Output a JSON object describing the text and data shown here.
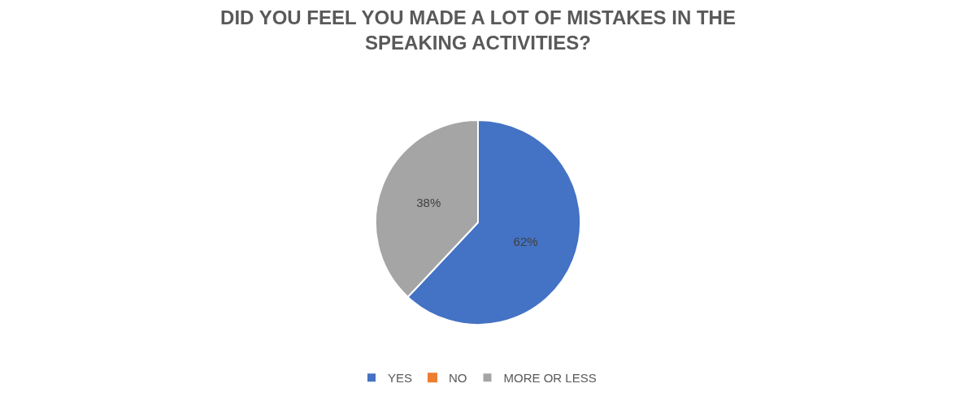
{
  "chart_data": {
    "type": "pie",
    "title": "DID YOU FEEL YOU MADE A LOT OF MISTAKES IN THE SPEAKING ACTIVITIES?",
    "categories": [
      "YES",
      "NO",
      "MORE OR LESS"
    ],
    "values": [
      62,
      0,
      38
    ],
    "colors": [
      "#4472c4",
      "#ed7d31",
      "#a5a5a5"
    ],
    "value_labels": [
      "62%",
      null,
      "38%"
    ],
    "legend": "bottom"
  }
}
